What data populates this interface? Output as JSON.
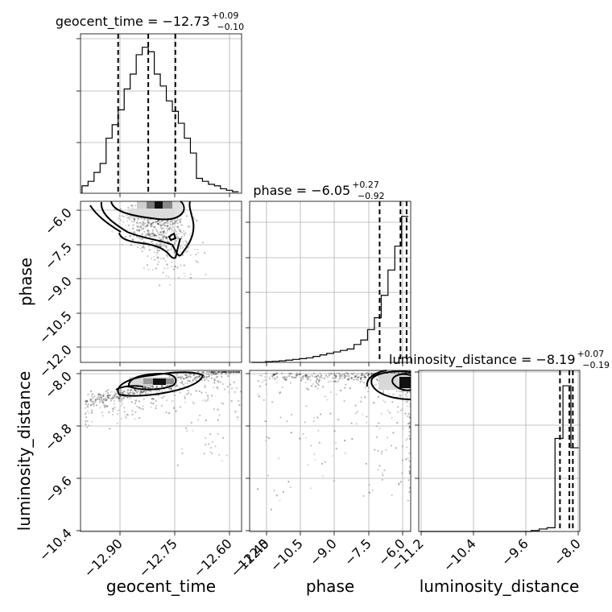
{
  "chart_data": {
    "type": "corner",
    "parameters": [
      "geocent_time",
      "phase",
      "luminosity_distance"
    ],
    "titles": [
      {
        "text": "geocent_time = −12.73",
        "plus": "+0.09",
        "minus": "−0.10"
      },
      {
        "text": "phase = −6.05",
        "plus": "+0.27",
        "minus": "−0.92"
      },
      {
        "text": "luminosity_distance = −8.19",
        "plus": "+0.07",
        "minus": "−0.19"
      }
    ],
    "axes": {
      "geocent_time": {
        "label": "geocent_time",
        "ticks": [
          "−12.90",
          "−12.75",
          "−12.60",
          "−12.45"
        ],
        "range": [
          -12.955,
          -12.42
        ]
      },
      "phase": {
        "label": "phase",
        "ticks": [
          "−12.0",
          "−10.5",
          "−9.0",
          "−7.5",
          "−6.0"
        ],
        "range": [
          -12.7,
          -5.6
        ]
      },
      "luminosity_distance": {
        "label": "luminosity_distance",
        "ticks": [
          "−11.2",
          "−10.4",
          "−9.6",
          "−8.8",
          "−8.0"
        ],
        "range": [
          -11.23,
          -7.98
        ]
      }
    },
    "histograms": [
      {
        "parameter": "geocent_time",
        "bin_edges": [
          -12.95,
          -12.93,
          -12.91,
          -12.89,
          -12.87,
          -12.85,
          -12.83,
          -12.81,
          -12.79,
          -12.77,
          -12.75,
          -12.73,
          -12.71,
          -12.69,
          -12.67,
          -12.65,
          -12.63,
          -12.61,
          -12.59,
          -12.57,
          -12.55,
          -12.53,
          -12.51,
          -12.49,
          -12.47,
          -12.45,
          -12.43
        ],
        "counts": [
          0.05,
          0.08,
          0.14,
          0.2,
          0.37,
          0.46,
          0.56,
          0.7,
          0.8,
          0.93,
          0.98,
          0.95,
          0.8,
          0.72,
          0.62,
          0.55,
          0.47,
          0.37,
          0.27,
          0.1,
          0.08,
          0.06,
          0.05,
          0.03,
          0.02,
          0.01
        ],
        "quantiles": [
          -12.83,
          -12.73,
          -12.64
        ]
      },
      {
        "parameter": "phase",
        "bin_edges": [
          -12.6,
          -12.3,
          -12.0,
          -11.7,
          -11.4,
          -11.1,
          -10.8,
          -10.5,
          -10.2,
          -9.9,
          -9.6,
          -9.3,
          -9.0,
          -8.7,
          -8.4,
          -8.1,
          -7.8,
          -7.5,
          -7.2,
          -6.9,
          -6.6,
          -6.3,
          -6.0,
          -5.7
        ],
        "counts": [
          0.0,
          0.0,
          0.005,
          0.007,
          0.01,
          0.015,
          0.02,
          0.025,
          0.03,
          0.04,
          0.05,
          0.06,
          0.07,
          0.08,
          0.09,
          0.12,
          0.15,
          0.22,
          0.3,
          0.45,
          0.62,
          0.78,
          0.98
        ],
        "quantiles": [
          -6.97,
          -6.05,
          -5.78
        ]
      },
      {
        "parameter": "luminosity_distance",
        "bin_edges": [
          -11.2,
          -11.04,
          -10.88,
          -10.72,
          -10.56,
          -10.4,
          -10.24,
          -10.08,
          -9.92,
          -9.76,
          -9.6,
          -9.44,
          -9.28,
          -9.12,
          -8.96,
          -8.8,
          -8.64,
          -8.48,
          -8.32,
          -8.16,
          -8.0
        ],
        "counts": [
          0,
          0,
          0,
          0,
          0,
          0,
          0,
          0,
          0,
          0,
          0,
          0,
          0,
          0,
          0.003,
          0.008,
          0.012,
          0.3,
          0.47,
          0.27
        ],
        "quantiles": [
          -8.38,
          -8.19,
          -8.12
        ]
      }
    ],
    "scatter_2d": [
      {
        "x": "geocent_time",
        "y": "phase",
        "contours": true
      },
      {
        "x": "geocent_time",
        "y": "luminosity_distance",
        "contours": true
      },
      {
        "x": "phase",
        "y": "luminosity_distance",
        "contours": true
      }
    ],
    "grid": true
  }
}
